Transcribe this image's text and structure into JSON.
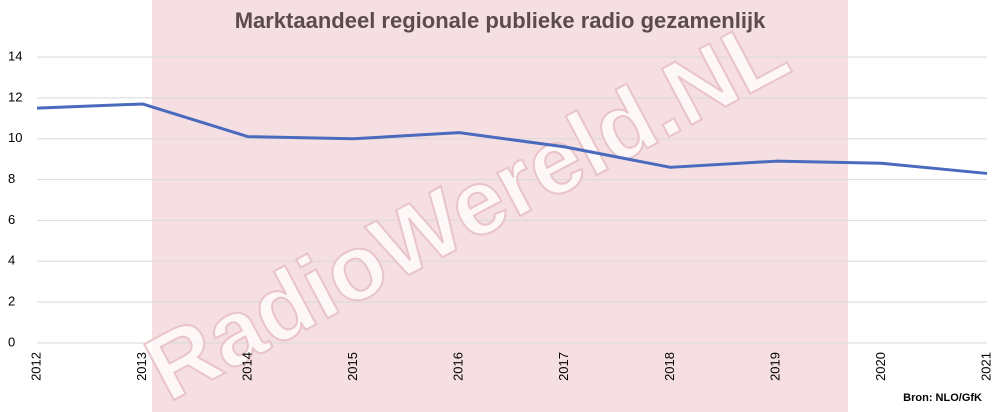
{
  "chart_data": {
    "type": "line",
    "title": "Marktaandeel regionale publieke radio gezamenlijk",
    "watermark": "RadioWereld.NL",
    "source": "Bron: NLO/GfK",
    "categories": [
      "2012",
      "2013",
      "2014",
      "2015",
      "2016",
      "2017",
      "2018",
      "2019",
      "2020",
      "2021"
    ],
    "series": [
      {
        "name": "Marktaandeel",
        "color": "#4a6bbd",
        "values": [
          11.5,
          11.7,
          10.1,
          10.0,
          10.3,
          9.6,
          8.6,
          8.9,
          8.8,
          8.3
        ]
      }
    ],
    "ylim": [
      0,
      14
    ],
    "yticks": [
      0,
      2,
      4,
      6,
      8,
      10,
      12,
      14
    ],
    "grid": true
  }
}
